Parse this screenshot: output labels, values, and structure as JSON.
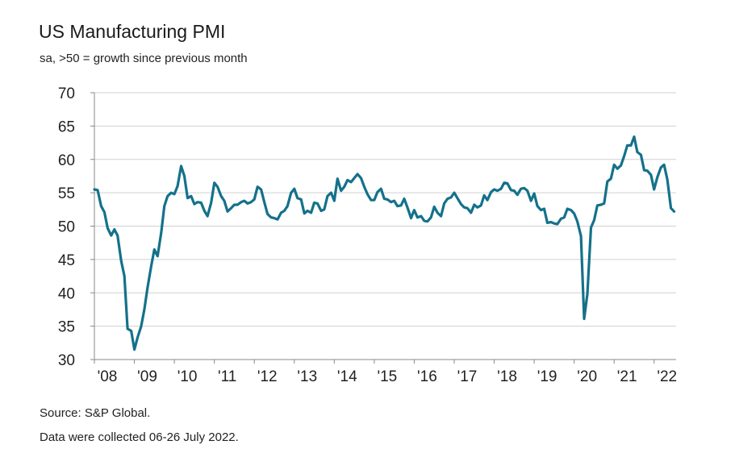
{
  "title": "US Manufacturing PMI",
  "subtitle": "sa, >50 = growth since previous month",
  "source": "Source: S&P Global.",
  "collected": "Data were collected 06-26 July 2022.",
  "colors": {
    "line": "#14718a",
    "grid": "#d0d0d0",
    "axis": "#888888"
  },
  "chart_data": {
    "type": "line",
    "title": "US Manufacturing PMI",
    "subtitle": "sa, >50 = growth since previous month",
    "xlabel": "",
    "ylabel": "",
    "ylim": [
      30,
      70
    ],
    "yticks": [
      30,
      35,
      40,
      45,
      50,
      55,
      60,
      65,
      70
    ],
    "xlim": [
      2008.0,
      2022.55
    ],
    "xtick_values": [
      2008,
      2009,
      2010,
      2011,
      2012,
      2013,
      2014,
      2015,
      2016,
      2017,
      2018,
      2019,
      2020,
      2021,
      2022
    ],
    "xtick_labels": [
      "'08",
      "'09",
      "'10",
      "'11",
      "'12",
      "'13",
      "'14",
      "'15",
      "'16",
      "'17",
      "'18",
      "'19",
      "'20",
      "'21",
      "'22"
    ],
    "grid": true,
    "series": [
      {
        "name": "US Manufacturing PMI",
        "x": [
          2008.0,
          2008.08,
          2008.17,
          2008.25,
          2008.33,
          2008.42,
          2008.5,
          2008.58,
          2008.67,
          2008.75,
          2008.83,
          2008.92,
          2009.0,
          2009.08,
          2009.17,
          2009.25,
          2009.33,
          2009.42,
          2009.5,
          2009.58,
          2009.67,
          2009.75,
          2009.83,
          2009.92,
          2010.0,
          2010.08,
          2010.17,
          2010.25,
          2010.33,
          2010.42,
          2010.5,
          2010.58,
          2010.67,
          2010.75,
          2010.83,
          2010.92,
          2011.0,
          2011.08,
          2011.17,
          2011.25,
          2011.33,
          2011.42,
          2011.5,
          2011.58,
          2011.67,
          2011.75,
          2011.83,
          2011.92,
          2012.0,
          2012.08,
          2012.17,
          2012.25,
          2012.33,
          2012.42,
          2012.5,
          2012.58,
          2012.67,
          2012.75,
          2012.83,
          2012.92,
          2013.0,
          2013.08,
          2013.17,
          2013.25,
          2013.33,
          2013.42,
          2013.5,
          2013.58,
          2013.67,
          2013.75,
          2013.83,
          2013.92,
          2014.0,
          2014.08,
          2014.17,
          2014.25,
          2014.33,
          2014.42,
          2014.5,
          2014.58,
          2014.67,
          2014.75,
          2014.83,
          2014.92,
          2015.0,
          2015.08,
          2015.17,
          2015.25,
          2015.33,
          2015.42,
          2015.5,
          2015.58,
          2015.67,
          2015.75,
          2015.83,
          2015.92,
          2016.0,
          2016.08,
          2016.17,
          2016.25,
          2016.33,
          2016.42,
          2016.5,
          2016.58,
          2016.67,
          2016.75,
          2016.83,
          2016.92,
          2017.0,
          2017.08,
          2017.17,
          2017.25,
          2017.33,
          2017.42,
          2017.5,
          2017.58,
          2017.67,
          2017.75,
          2017.83,
          2017.92,
          2018.0,
          2018.08,
          2018.17,
          2018.25,
          2018.33,
          2018.42,
          2018.5,
          2018.58,
          2018.67,
          2018.75,
          2018.83,
          2018.92,
          2019.0,
          2019.08,
          2019.17,
          2019.25,
          2019.33,
          2019.42,
          2019.5,
          2019.58,
          2019.67,
          2019.75,
          2019.83,
          2019.92,
          2020.0,
          2020.08,
          2020.17,
          2020.25,
          2020.33,
          2020.42,
          2020.5,
          2020.58,
          2020.67,
          2020.75,
          2020.83,
          2020.92,
          2021.0,
          2021.08,
          2021.17,
          2021.25,
          2021.33,
          2021.42,
          2021.5,
          2021.58,
          2021.67,
          2021.75,
          2021.83,
          2021.92,
          2022.0,
          2022.08,
          2022.17,
          2022.25,
          2022.33,
          2022.42,
          2022.5
        ],
        "values": [
          55.5,
          55.4,
          53.0,
          52.1,
          49.7,
          48.6,
          49.5,
          48.6,
          44.8,
          42.5,
          34.6,
          34.3,
          31.5,
          33.3,
          35.0,
          37.5,
          40.8,
          44.0,
          46.5,
          45.5,
          49.0,
          53.0,
          54.5,
          55.0,
          54.8,
          56.0,
          59.0,
          57.5,
          54.2,
          54.5,
          53.3,
          53.6,
          53.5,
          52.3,
          51.5,
          53.5,
          56.5,
          55.9,
          54.5,
          53.8,
          52.2,
          52.7,
          53.2,
          53.2,
          53.6,
          53.8,
          53.4,
          53.6,
          54.0,
          55.9,
          55.5,
          53.6,
          51.8,
          51.3,
          51.2,
          51.0,
          52.0,
          52.3,
          53.0,
          55.0,
          55.6,
          54.2,
          54.0,
          51.9,
          52.3,
          52.0,
          53.5,
          53.4,
          52.3,
          52.5,
          54.5,
          55.0,
          53.8,
          57.1,
          55.3,
          55.9,
          56.9,
          56.6,
          57.2,
          57.8,
          57.2,
          55.9,
          54.8,
          53.9,
          53.9,
          55.1,
          55.6,
          54.1,
          54.0,
          53.6,
          53.8,
          53.0,
          53.1,
          54.1,
          52.8,
          51.2,
          52.4,
          51.3,
          51.5,
          50.8,
          50.7,
          51.3,
          52.9,
          52.0,
          51.5,
          53.4,
          54.1,
          54.3,
          55.0,
          54.2,
          53.3,
          52.8,
          52.7,
          52.0,
          53.2,
          52.8,
          53.1,
          54.6,
          53.9,
          55.1,
          55.5,
          55.3,
          55.6,
          56.5,
          56.4,
          55.4,
          55.3,
          54.7,
          55.6,
          55.7,
          55.3,
          53.8,
          54.9,
          53.0,
          52.4,
          52.6,
          50.5,
          50.6,
          50.4,
          50.3,
          51.1,
          51.3,
          52.6,
          52.4,
          51.9,
          50.7,
          48.5,
          36.1,
          39.8,
          49.8,
          50.9,
          53.1,
          53.2,
          53.4,
          56.7,
          57.1,
          59.2,
          58.6,
          59.1,
          60.5,
          62.1,
          62.1,
          63.4,
          61.1,
          60.7,
          58.4,
          58.3,
          57.7,
          55.5,
          57.3,
          58.8,
          59.2,
          57.0,
          52.7,
          52.2
        ]
      }
    ]
  }
}
